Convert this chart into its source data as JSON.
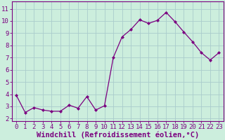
{
  "x": [
    0,
    1,
    2,
    3,
    4,
    5,
    6,
    7,
    8,
    9,
    10,
    11,
    12,
    13,
    14,
    15,
    16,
    17,
    18,
    19,
    20,
    21,
    22,
    23
  ],
  "y": [
    3.9,
    2.5,
    2.9,
    2.7,
    2.6,
    2.6,
    3.1,
    2.85,
    3.8,
    2.7,
    3.05,
    7.0,
    8.7,
    9.3,
    10.1,
    9.8,
    10.05,
    10.7,
    9.95,
    9.1,
    8.3,
    7.4,
    6.8,
    7.4
  ],
  "line_color": "#7B0080",
  "marker": "D",
  "marker_size": 2.0,
  "bg_color": "#cceedd",
  "grid_color": "#aacccc",
  "xlabel": "Windchill (Refroidissement éolien,°C)",
  "xlabel_fontsize": 7.5,
  "yticks": [
    2,
    3,
    4,
    5,
    6,
    7,
    8,
    9,
    10,
    11
  ],
  "xticks": [
    0,
    1,
    2,
    3,
    4,
    5,
    6,
    7,
    8,
    9,
    10,
    11,
    12,
    13,
    14,
    15,
    16,
    17,
    18,
    19,
    20,
    21,
    22,
    23
  ],
  "ylim": [
    1.8,
    11.6
  ],
  "xlim": [
    -0.5,
    23.5
  ],
  "tick_fontsize": 6.5,
  "spine_color": "#7B0080"
}
